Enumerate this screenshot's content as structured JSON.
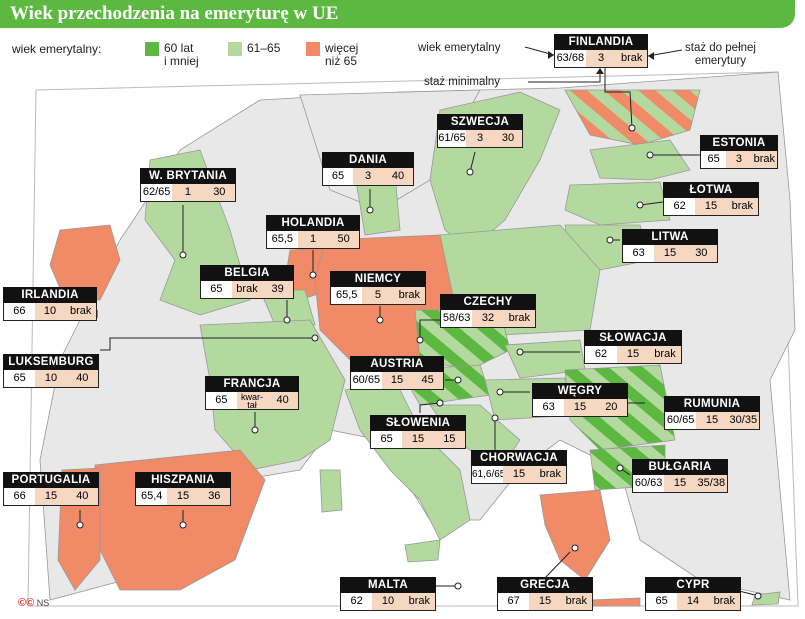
{
  "title": "Wiek przechodzenia na emeryturę w UE",
  "legend": {
    "label": "wiek emerytalny:",
    "items": [
      {
        "label": "60 lat\ni mniej",
        "color": "#5cb841"
      },
      {
        "label": "61–65",
        "color": "#b4d99f"
      },
      {
        "label": "więcej\nniż 65",
        "color": "#f08a67"
      }
    ]
  },
  "key": {
    "retirement_age": "wiek emerytalny",
    "full_service": "staż do pełnej\nemerytury",
    "min_service": "staż minimalny"
  },
  "countries": [
    {
      "name": "FINLANDIA",
      "age": "63/68",
      "min": "3",
      "full": "brak"
    },
    {
      "name": "SZWECJA",
      "age": "61/65",
      "min": "3",
      "full": "30"
    },
    {
      "name": "ESTONIA",
      "age": "65",
      "min": "3",
      "full": "brak"
    },
    {
      "name": "DANIA",
      "age": "65",
      "min": "3",
      "full": "40"
    },
    {
      "name": "W. BRYTANIA",
      "age": "62/65",
      "min": "1",
      "full": "30"
    },
    {
      "name": "ŁOTWA",
      "age": "62",
      "min": "15",
      "full": "brak"
    },
    {
      "name": "HOLANDIA",
      "age": "65,5",
      "min": "1",
      "full": "50"
    },
    {
      "name": "LITWA",
      "age": "63",
      "min": "15",
      "full": "30"
    },
    {
      "name": "BELGIA",
      "age": "65",
      "min": "brak",
      "full": "39"
    },
    {
      "name": "NIEMCY",
      "age": "65,5",
      "min": "5",
      "full": "brak"
    },
    {
      "name": "IRLANDIA",
      "age": "66",
      "min": "10",
      "full": "brak"
    },
    {
      "name": "CZECHY",
      "age": "58/63",
      "min": "32",
      "full": "brak"
    },
    {
      "name": "SŁOWACJA",
      "age": "62",
      "min": "15",
      "full": "brak"
    },
    {
      "name": "LUKSEMBURG",
      "age": "65",
      "min": "10",
      "full": "40"
    },
    {
      "name": "AUSTRIA",
      "age": "60/65",
      "min": "15",
      "full": "45"
    },
    {
      "name": "FRANCJA",
      "age": "65",
      "min": "kwar-\ntał",
      "full": "40"
    },
    {
      "name": "WĘGRY",
      "age": "63",
      "min": "15",
      "full": "20"
    },
    {
      "name": "RUMUNIA",
      "age": "60/65",
      "min": "15",
      "full": "30/35"
    },
    {
      "name": "SŁOWENIA",
      "age": "65",
      "min": "15",
      "full": "15"
    },
    {
      "name": "CHORWACJA",
      "age": "61,6/65",
      "min": "15",
      "full": "brak"
    },
    {
      "name": "BUŁGARIA",
      "age": "60/63",
      "min": "15",
      "full": "35/38"
    },
    {
      "name": "PORTUGALIA",
      "age": "66",
      "min": "15",
      "full": "40"
    },
    {
      "name": "HISZPANIA",
      "age": "65,4",
      "min": "15",
      "full": "36"
    },
    {
      "name": "MALTA",
      "age": "62",
      "min": "10",
      "full": "brak"
    },
    {
      "name": "GRECJA",
      "age": "67",
      "min": "15",
      "full": "brak"
    },
    {
      "name": "CYPR",
      "age": "65",
      "min": "14",
      "full": "brak"
    }
  ],
  "credit": "NS"
}
